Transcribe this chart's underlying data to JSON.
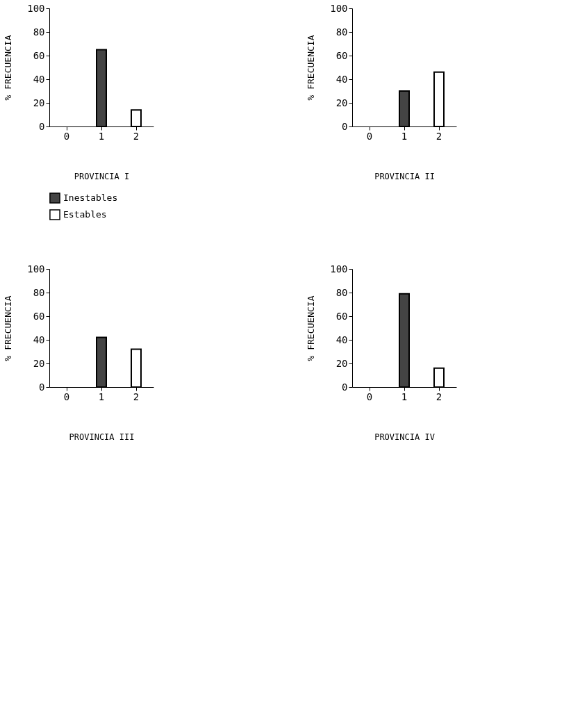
{
  "chart_data": [
    {
      "type": "bar",
      "xlabel": "PROVINCIA I",
      "ylabel": "% FRECUENCIA",
      "categories": [
        "0",
        "1",
        "2"
      ],
      "ylim": [
        0,
        100
      ],
      "yticks": [
        0,
        20,
        40,
        60,
        80,
        100
      ],
      "grid": false,
      "legend": "bottom",
      "series": [
        {
          "name": "Inestables",
          "color": "#444444",
          "values": [
            null,
            65,
            null
          ]
        },
        {
          "name": "Estables",
          "color": "#ffffff",
          "values": [
            null,
            null,
            14
          ]
        }
      ]
    },
    {
      "type": "bar",
      "xlabel": "PROVINCIA II",
      "ylabel": "% FRECUENCIA",
      "categories": [
        "0",
        "1",
        "2"
      ],
      "ylim": [
        0,
        100
      ],
      "yticks": [
        0,
        20,
        40,
        60,
        80,
        100
      ],
      "grid": false,
      "series": [
        {
          "color": "#444444",
          "values": [
            null,
            30,
            null
          ]
        },
        {
          "color": "#ffffff",
          "values": [
            null,
            null,
            46
          ]
        }
      ]
    },
    {
      "type": "bar",
      "xlabel": "PROVINCIA III",
      "ylabel": "% FRECUENCIA",
      "categories": [
        "0",
        "1",
        "2"
      ],
      "ylim": [
        0,
        100
      ],
      "yticks": [
        0,
        20,
        40,
        60,
        80,
        100
      ],
      "grid": false,
      "series": [
        {
          "color": "#444444",
          "values": [
            null,
            42,
            null
          ]
        },
        {
          "color": "#ffffff",
          "values": [
            null,
            null,
            32
          ]
        }
      ]
    },
    {
      "type": "bar",
      "xlabel": "PROVINCIA IV",
      "ylabel": "% FRECUENCIA",
      "categories": [
        "0",
        "1",
        "2"
      ],
      "ylim": [
        0,
        100
      ],
      "yticks": [
        0,
        20,
        40,
        60,
        80,
        100
      ],
      "grid": false,
      "series": [
        {
          "color": "#444444",
          "values": [
            null,
            79,
            null
          ]
        },
        {
          "color": "#ffffff",
          "values": [
            null,
            null,
            16
          ]
        }
      ]
    }
  ]
}
